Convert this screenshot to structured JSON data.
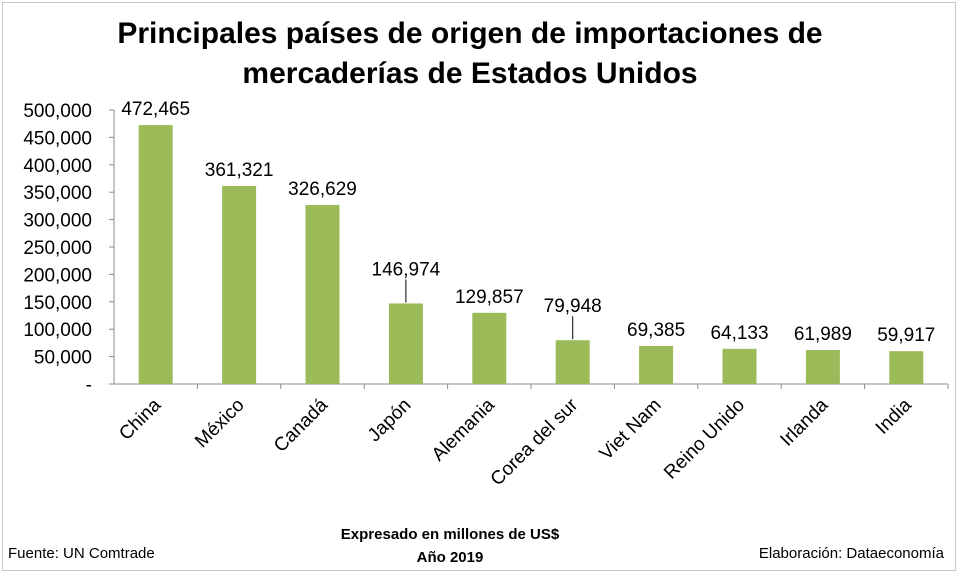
{
  "chart_data": {
    "type": "bar",
    "title_line1": "Principales países de origen de importaciones de",
    "title_line2": "mercaderías de Estados Unidos",
    "categories": [
      "China",
      "México",
      "Canadá",
      "Japón",
      "Alemania",
      "Corea del sur",
      "Viet Nam",
      "Reino Unido",
      "Irlanda",
      "India"
    ],
    "values": [
      472465,
      361321,
      326629,
      146974,
      129857,
      79948,
      69385,
      64133,
      61989,
      59917
    ],
    "value_labels": [
      "472,465",
      "361,321",
      "326,629",
      "146,974",
      "129,857",
      "79,948",
      "69,385",
      "64,133",
      "61,989",
      "59,917"
    ],
    "y_ticks": [
      "-",
      "50,000",
      "100,000",
      "150,000",
      "200,000",
      "250,000",
      "300,000",
      "350,000",
      "400,000",
      "450,000",
      "500,000"
    ],
    "ylim": [
      0,
      500000
    ],
    "grid": false,
    "bar_color": "#9bbb59",
    "subtitle_line1": "Expresado en millones de US$",
    "subtitle_line2": "Año 2019"
  },
  "footer": {
    "source": "Fuente: UN Comtrade",
    "credit": "Elaboración: Dataeconomía"
  }
}
